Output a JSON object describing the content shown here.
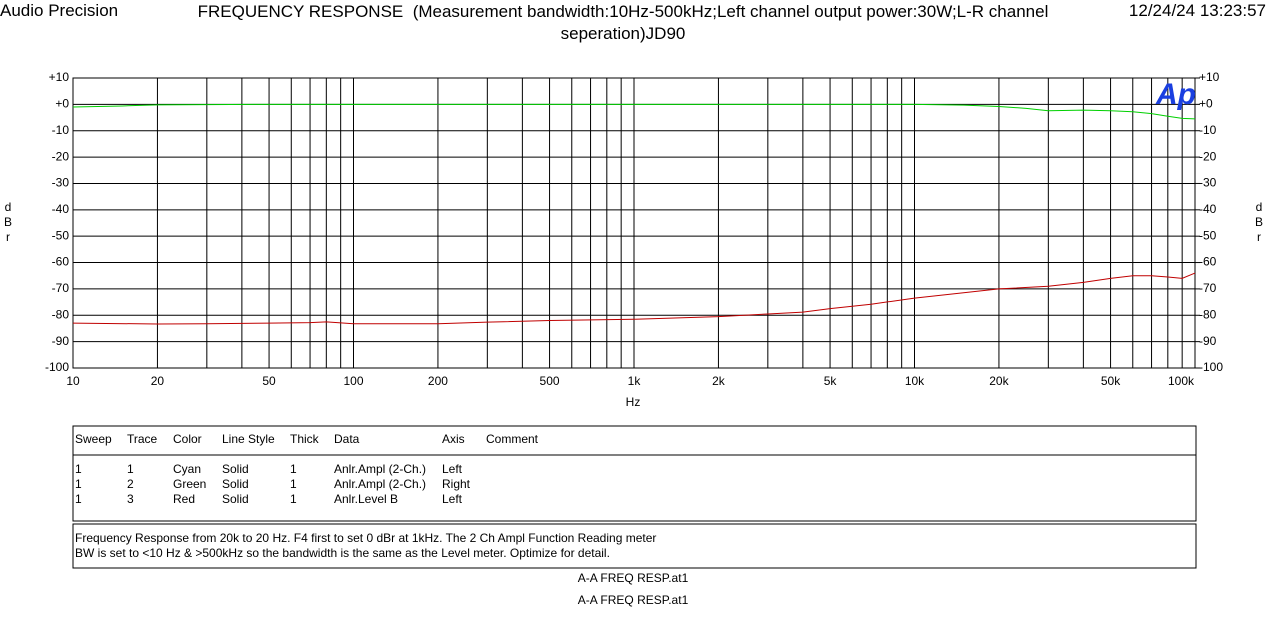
{
  "header": {
    "left": "Audio Precision",
    "title": "FREQUENCY RESPONSE  (Measurement bandwidth:10Hz-500kHz;Left channel output power:30W;L-R channel seperation)JD90",
    "datetime": "12/24/24 13:23:57"
  },
  "chart_data": {
    "type": "line",
    "logo": "Ap",
    "xlabel": "Hz",
    "ylabel": "dBr",
    "y2label": "dBr",
    "xscale": "log",
    "xlim": [
      10,
      100000
    ],
    "xticks": [
      10,
      20,
      50,
      100,
      200,
      500,
      {
        "value": 1000,
        "label": "1k"
      },
      {
        "value": 2000,
        "label": "2k"
      },
      {
        "value": 5000,
        "label": "5k"
      },
      {
        "value": 10000,
        "label": "10k"
      },
      {
        "value": 20000,
        "label": "20k"
      },
      {
        "value": 50000,
        "label": "50k"
      },
      {
        "value": 100000,
        "label": "100k"
      }
    ],
    "xgrid_minor": [
      30,
      40,
      60,
      70,
      80,
      90,
      300,
      400,
      600,
      700,
      800,
      900,
      3000,
      4000,
      6000,
      7000,
      8000,
      9000,
      30000,
      40000,
      60000,
      70000,
      80000,
      90000
    ],
    "ylim": [
      -100,
      10
    ],
    "yticks": [
      {
        "value": 10,
        "label": "+10"
      },
      {
        "value": 0,
        "label": "+0"
      },
      -10,
      -20,
      -30,
      -40,
      -50,
      -60,
      -70,
      -80,
      -90,
      -100
    ],
    "y2lim": [
      -100,
      10
    ],
    "y2ticks": [
      {
        "value": 10,
        "label": "+10"
      },
      {
        "value": 0,
        "label": "+0"
      },
      -10,
      -20,
      -30,
      -40,
      -50,
      -60,
      -70,
      -80,
      -90,
      -100
    ],
    "grid": true,
    "series": [
      {
        "color": "#00d000",
        "axis": "y2",
        "x": [
          10,
          15,
          20,
          50,
          100,
          1000,
          10000,
          15000,
          20000,
          25000,
          30000,
          40000,
          50000,
          60000,
          70000,
          80000,
          90000,
          100000
        ],
        "values": [
          -1,
          -0.6,
          -0.2,
          0,
          0,
          0,
          0,
          -0.3,
          -0.8,
          -1.5,
          -2.4,
          -2.2,
          -2.4,
          -2.8,
          -3.5,
          -4.5,
          -5.3,
          -5.5
        ]
      },
      {
        "color": "#c00000",
        "axis": "y",
        "x": [
          10,
          20,
          30,
          50,
          70,
          80,
          100,
          200,
          300,
          500,
          1000,
          2000,
          3000,
          4000,
          5000,
          7000,
          10000,
          20000,
          30000,
          40000,
          50000,
          60000,
          70000,
          80000,
          90000,
          100000
        ],
        "values": [
          -83,
          -83.3,
          -83.2,
          -83,
          -82.8,
          -82.5,
          -83.2,
          -83.2,
          -82.6,
          -82,
          -81.5,
          -80.5,
          -79.5,
          -78.8,
          -77.5,
          -75.8,
          -73.5,
          -70,
          -69,
          -67.5,
          -66,
          -65,
          -65,
          -65.5,
          -66,
          -64
        ]
      }
    ]
  },
  "table": {
    "headers": [
      "Sweep",
      "Trace",
      "Color",
      "Line Style",
      "Thick",
      "Data",
      "Axis",
      "Comment"
    ],
    "rows": [
      [
        "1",
        "1",
        "Cyan",
        "Solid",
        "1",
        "Anlr.Ampl (2-Ch.)",
        "Left"
      ],
      [
        "1",
        "2",
        "Green",
        "Solid",
        "1",
        "Anlr.Ampl (2-Ch.)",
        "Right"
      ],
      [
        "1",
        "3",
        "Red",
        "Solid",
        "1",
        "Anlr.Level B",
        "Left"
      ]
    ]
  },
  "comment": [
    "Frequency Response from 20k to 20 Hz.  F4 first to set 0 dBr at 1kHz.  The 2 Ch Ampl Function Reading meter",
    "BW is set to <10 Hz & >500kHz so the bandwidth is the same as the Level meter.  Optimize for detail."
  ],
  "footer": [
    "A-A FREQ RESP.at1",
    "A-A FREQ RESP.at1"
  ]
}
